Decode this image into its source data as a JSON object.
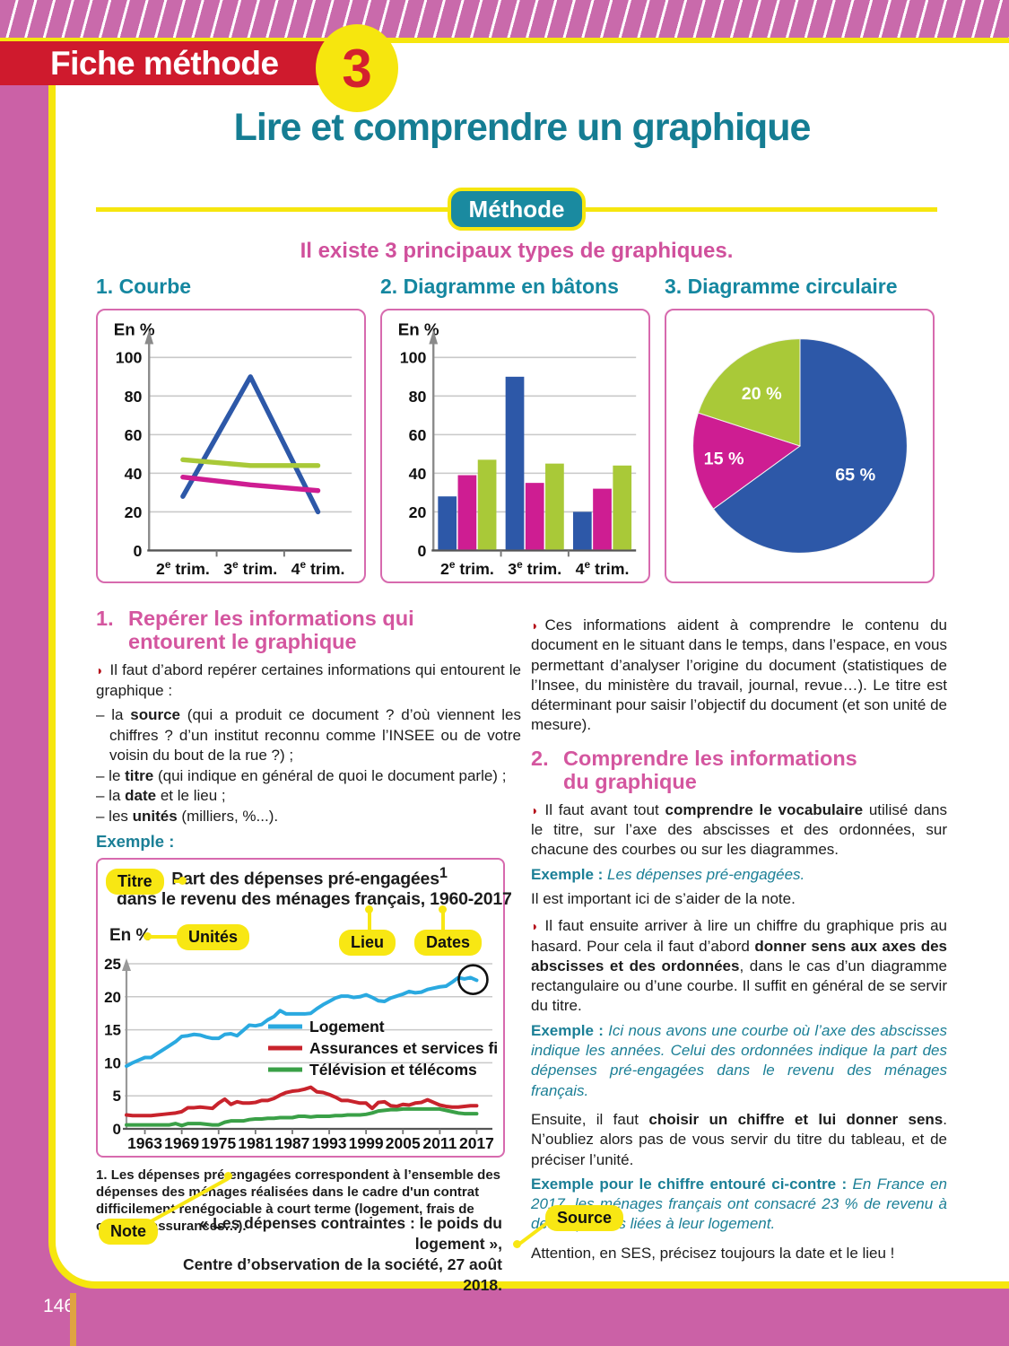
{
  "page": {
    "number": "146"
  },
  "icons": {
    "bullet": "◗"
  },
  "colors": {
    "page_pink": "#cb61a6",
    "band_pink": "#c96aab",
    "yellow": "#f6e60e",
    "banner_red": "#cf1a2d",
    "teal": "#157d93",
    "badge_teal": "#1a8aa0",
    "heading_pink": "#d4569f",
    "series_blue": "#2d58a8",
    "series_magenta": "#ce1d92",
    "series_green": "#a9c938",
    "logement_blue": "#2aa9e0",
    "assurances_red": "#c8232c",
    "telecom_green": "#3aa047"
  },
  "header": {
    "banner_label": "Fiche méthode",
    "fiche_number": "3",
    "title": "Lire et comprendre un graphique",
    "method_badge": "Méthode",
    "subtitle": "Il existe 3 principaux types de graphiques."
  },
  "chart_titles": {
    "courbe": "1. Courbe",
    "batons": "2. Diagramme en bâtons",
    "circulaire": "3. Diagramme circulaire"
  },
  "section1": {
    "number": "1.",
    "heading": "Repérer les informations qui entourent le graphique",
    "intro": "Il faut d’abord repérer certaines informations qui entourent le graphique :",
    "items": [
      {
        "pre": "– la ",
        "bold": "source",
        "post": " (qui a produit ce document ? d’où viennent les chiffres ? d’un institut reconnu comme l’INSEE ou de votre voisin du bout de la rue ?) ;"
      },
      {
        "pre": "– le ",
        "bold": "titre",
        "post": " (qui indique en général de quoi le document parle) ;"
      },
      {
        "pre": "– la ",
        "bold": "date",
        "post": " et le lieu ;"
      },
      {
        "pre": "– les ",
        "bold": "unités",
        "post": " (milliers, %...)."
      }
    ],
    "example_label": "Exemple :"
  },
  "example_figure": {
    "badges": {
      "titre": "Titre",
      "unites": "Unités",
      "lieu": "Lieu",
      "dates": "Dates",
      "note": "Note",
      "source": "Source"
    },
    "title_line1": "Part des dépenses pré-engagées",
    "title_sup": "1",
    "title_line2": "dans le revenu des ménages français, 1960-2017",
    "note_num": "1.",
    "note_text": "Les dépenses pré-engagées correspondent à l’ensemble des dépenses des ménages réalisées dans le cadre d'un contrat difficilement renégociable à court terme (logement, frais de cantine, assurances…).",
    "source_line1": "« Les dépenses contraintes : le poids du logement »,",
    "source_line2": "Centre d’observation de la société, 27 août 2018."
  },
  "section2": {
    "col1_para": "Ces informations aident à comprendre le contenu du document en le situant dans le temps, dans l’espace, en vous permettant d’analyser l’origine du document (statistiques de l’Insee, du ministère du travail, journal, revue…). Le titre est déterminant pour saisir l’objectif du document (et son unité de mesure).",
    "number": "2.",
    "heading": "Comprendre les informations du graphique",
    "p_vocab": {
      "a": "Il faut avant tout ",
      "b": "comprendre le vocabulaire",
      "c": " utilisé dans le titre, sur l’axe des abscisses et des ordonnées, sur chacune des courbes ou sur les diagrammes."
    },
    "ex1": {
      "label": "Exemple :",
      "text": " Les dépenses pré-engagées."
    },
    "p_note": "Il est important ici de s’aider de la note.",
    "p_axes": {
      "a": "Il faut ensuite arriver à lire un chiffre du graphique pris au hasard. Pour cela il faut d’abord ",
      "b": "donner sens aux axes des abscisses et des ordonnées",
      "c": ", dans le cas d’un diagramme rectangulaire ou d’une courbe. Il suffit en général de se servir du titre."
    },
    "ex2": {
      "label": "Exemple :",
      "text": " Ici nous avons une courbe où l’axe des abscisses indique les années. Celui des ordonnées indique la part des dépenses pré-engagées dans le revenu des ménages français."
    },
    "p_choose": {
      "a": "Ensuite, il faut ",
      "b": "choisir un chiffre et lui donner sens",
      "c": ". N’oubliez alors pas de vous servir du titre du tableau, et de préciser l’unité."
    },
    "ex3": {
      "label": "Exemple pour le chiffre entouré ci-contre :",
      "text": " En France en 2017, les ménages français ont consacré 23 % de revenu à des dépenses liées à leur logement."
    },
    "p_attention": "Attention, en SES, précisez toujours la date et le lieu !"
  },
  "chart_data": [
    {
      "id": "courbe",
      "type": "line",
      "unit_label": "En %",
      "ylim": [
        0,
        100
      ],
      "yticks": [
        0,
        20,
        40,
        60,
        80,
        100
      ],
      "grid": true,
      "categories": [
        {
          "base": "2",
          "sup": "e",
          "suffix": " trim."
        },
        {
          "base": "3",
          "sup": "e",
          "suffix": " trim."
        },
        {
          "base": "4",
          "sup": "e",
          "suffix": " trim."
        }
      ],
      "series": [
        {
          "name": "courbe bleue",
          "color": "#2d58a8",
          "values": [
            28,
            90,
            20
          ]
        },
        {
          "name": "courbe verte",
          "color": "#a9c938",
          "values": [
            47,
            44,
            44
          ]
        },
        {
          "name": "courbe magenta",
          "color": "#ce1d92",
          "values": [
            38,
            34,
            31
          ]
        }
      ]
    },
    {
      "id": "batons",
      "type": "bar",
      "unit_label": "En %",
      "ylim": [
        0,
        100
      ],
      "yticks": [
        0,
        20,
        40,
        60,
        80,
        100
      ],
      "grid": true,
      "categories": [
        {
          "base": "2",
          "sup": "e",
          "suffix": " trim."
        },
        {
          "base": "3",
          "sup": "e",
          "suffix": " trim."
        },
        {
          "base": "4",
          "sup": "e",
          "suffix": " trim."
        }
      ],
      "series": [
        {
          "name": "bâton bleu",
          "color": "#2d58a8",
          "values": [
            28,
            90,
            20
          ]
        },
        {
          "name": "bâton magenta",
          "color": "#ce1d92",
          "values": [
            39,
            35,
            32
          ]
        },
        {
          "name": "bâton vert",
          "color": "#a9c938",
          "values": [
            47,
            45,
            44
          ]
        }
      ]
    },
    {
      "id": "circulaire",
      "type": "pie",
      "slices": [
        {
          "label": "65 %",
          "value": 65,
          "color": "#2d58a8",
          "label_r": 0.58
        },
        {
          "label": "15 %",
          "value": 15,
          "color": "#ce1d92",
          "label_r": 0.72
        },
        {
          "label": "20 %",
          "value": 20,
          "color": "#a9c938",
          "label_r": 0.61
        }
      ]
    },
    {
      "id": "exemple",
      "type": "line",
      "title": "Part des dépenses pré-engagées dans le revenu des ménages français, 1960-2017",
      "unit_label": "En %",
      "ylim": [
        0,
        25
      ],
      "yticks": [
        0,
        5,
        10,
        15,
        20,
        25
      ],
      "xlim": [
        1960,
        2018
      ],
      "xticks": [
        1963,
        1969,
        1975,
        1981,
        1987,
        1993,
        1999,
        2005,
        2011,
        2017
      ],
      "grid": true,
      "legend_position": "center-right",
      "annotation": {
        "type": "circle",
        "x": 2017,
        "y": 22.6
      },
      "series": [
        {
          "name": "Logement",
          "color": "#2aa9e0",
          "points": [
            [
              1960,
              9.5
            ],
            [
              1961,
              10
            ],
            [
              1962,
              10.4
            ],
            [
              1963,
              10.8
            ],
            [
              1964,
              10.8
            ],
            [
              1965,
              11.4
            ],
            [
              1966,
              12
            ],
            [
              1967,
              12.6
            ],
            [
              1968,
              13.2
            ],
            [
              1969,
              14
            ],
            [
              1970,
              14.1
            ],
            [
              1971,
              14.3
            ],
            [
              1972,
              14.2
            ],
            [
              1973,
              13.9
            ],
            [
              1974,
              13.7
            ],
            [
              1975,
              13.7
            ],
            [
              1976,
              14.3
            ],
            [
              1977,
              14.4
            ],
            [
              1978,
              14.1
            ],
            [
              1979,
              14.9
            ],
            [
              1980,
              15.7
            ],
            [
              1981,
              15.6
            ],
            [
              1982,
              15.8
            ],
            [
              1983,
              16.5
            ],
            [
              1984,
              17
            ],
            [
              1985,
              17.9
            ],
            [
              1986,
              17.4
            ],
            [
              1987,
              17.4
            ],
            [
              1988,
              17.4
            ],
            [
              1989,
              17.4
            ],
            [
              1990,
              17.5
            ],
            [
              1991,
              18.2
            ],
            [
              1992,
              18.8
            ],
            [
              1993,
              19.3
            ],
            [
              1994,
              19.8
            ],
            [
              1995,
              20.1
            ],
            [
              1996,
              20.1
            ],
            [
              1997,
              19.9
            ],
            [
              1998,
              20
            ],
            [
              1999,
              20.3
            ],
            [
              2000,
              19.9
            ],
            [
              2001,
              19.4
            ],
            [
              2002,
              19.3
            ],
            [
              2003,
              19.8
            ],
            [
              2004,
              20.1
            ],
            [
              2005,
              20.4
            ],
            [
              2006,
              20.8
            ],
            [
              2007,
              20.6
            ],
            [
              2008,
              20.7
            ],
            [
              2009,
              21.1
            ],
            [
              2010,
              21.3
            ],
            [
              2011,
              21.5
            ],
            [
              2012,
              21.6
            ],
            [
              2013,
              22.2
            ],
            [
              2014,
              22.9
            ],
            [
              2015,
              22.7
            ],
            [
              2016,
              22.9
            ],
            [
              2017,
              22.5
            ]
          ]
        },
        {
          "name": "Assurances et services financiers",
          "color": "#c8232c",
          "points": [
            [
              1960,
              2.1
            ],
            [
              1961,
              2
            ],
            [
              1962,
              2
            ],
            [
              1963,
              2
            ],
            [
              1964,
              2
            ],
            [
              1965,
              2.1
            ],
            [
              1966,
              2.2
            ],
            [
              1967,
              2.3
            ],
            [
              1968,
              2.4
            ],
            [
              1969,
              2.6
            ],
            [
              1970,
              3.2
            ],
            [
              1971,
              3.2
            ],
            [
              1972,
              3.3
            ],
            [
              1973,
              3.2
            ],
            [
              1974,
              3.1
            ],
            [
              1975,
              3.9
            ],
            [
              1976,
              4.5
            ],
            [
              1977,
              3.7
            ],
            [
              1978,
              4.1
            ],
            [
              1979,
              3.9
            ],
            [
              1980,
              3.9
            ],
            [
              1981,
              4
            ],
            [
              1982,
              4.3
            ],
            [
              1983,
              4.3
            ],
            [
              1984,
              4.6
            ],
            [
              1985,
              5.1
            ],
            [
              1986,
              5.5
            ],
            [
              1987,
              5.7
            ],
            [
              1988,
              5.8
            ],
            [
              1989,
              6
            ],
            [
              1990,
              6.3
            ],
            [
              1991,
              5.6
            ],
            [
              1992,
              5.5
            ],
            [
              1993,
              5.2
            ],
            [
              1994,
              4.8
            ],
            [
              1995,
              4.3
            ],
            [
              1996,
              4.3
            ],
            [
              1997,
              4.1
            ],
            [
              1998,
              3.9
            ],
            [
              1999,
              3.9
            ],
            [
              2000,
              3.1
            ],
            [
              2001,
              4
            ],
            [
              2002,
              4.1
            ],
            [
              2003,
              3.5
            ],
            [
              2004,
              3.4
            ],
            [
              2005,
              3.7
            ],
            [
              2006,
              3.6
            ],
            [
              2007,
              3.9
            ],
            [
              2008,
              4
            ],
            [
              2009,
              4.4
            ],
            [
              2010,
              4
            ],
            [
              2011,
              3.6
            ],
            [
              2012,
              3.4
            ],
            [
              2013,
              3.3
            ],
            [
              2014,
              3.3
            ],
            [
              2015,
              3.4
            ],
            [
              2016,
              3.5
            ],
            [
              2017,
              3.5
            ]
          ]
        },
        {
          "name": "Télévision et télécoms",
          "color": "#3aa047",
          "points": [
            [
              1960,
              0.6
            ],
            [
              1962,
              0.6
            ],
            [
              1964,
              0.6
            ],
            [
              1966,
              0.6
            ],
            [
              1967,
              0.6
            ],
            [
              1968,
              0.8
            ],
            [
              1969,
              0.5
            ],
            [
              1970,
              0.8
            ],
            [
              1971,
              0.8
            ],
            [
              1972,
              0.8
            ],
            [
              1973,
              0.7
            ],
            [
              1974,
              0.6
            ],
            [
              1975,
              0.6
            ],
            [
              1976,
              1
            ],
            [
              1977,
              1.2
            ],
            [
              1978,
              1.2
            ],
            [
              1979,
              1.2
            ],
            [
              1980,
              1.4
            ],
            [
              1981,
              1.5
            ],
            [
              1982,
              1.5
            ],
            [
              1983,
              1.6
            ],
            [
              1984,
              1.6
            ],
            [
              1985,
              1.7
            ],
            [
              1986,
              1.7
            ],
            [
              1987,
              1.7
            ],
            [
              1988,
              1.9
            ],
            [
              1989,
              1.9
            ],
            [
              1990,
              1.8
            ],
            [
              1991,
              1.9
            ],
            [
              1992,
              1.9
            ],
            [
              1993,
              1.9
            ],
            [
              1994,
              2
            ],
            [
              1995,
              2
            ],
            [
              1996,
              2.1
            ],
            [
              1997,
              2.1
            ],
            [
              1998,
              2.1
            ],
            [
              1999,
              2.2
            ],
            [
              2000,
              2.4
            ],
            [
              2001,
              2.7
            ],
            [
              2002,
              2.8
            ],
            [
              2003,
              2.9
            ],
            [
              2004,
              2.9
            ],
            [
              2005,
              3
            ],
            [
              2006,
              3
            ],
            [
              2007,
              3
            ],
            [
              2008,
              3
            ],
            [
              2009,
              3
            ],
            [
              2010,
              3
            ],
            [
              2011,
              3
            ],
            [
              2012,
              2.8
            ],
            [
              2013,
              2.6
            ],
            [
              2014,
              2.4
            ],
            [
              2015,
              2.3
            ],
            [
              2016,
              2.3
            ],
            [
              2017,
              2.3
            ]
          ]
        }
      ]
    }
  ]
}
